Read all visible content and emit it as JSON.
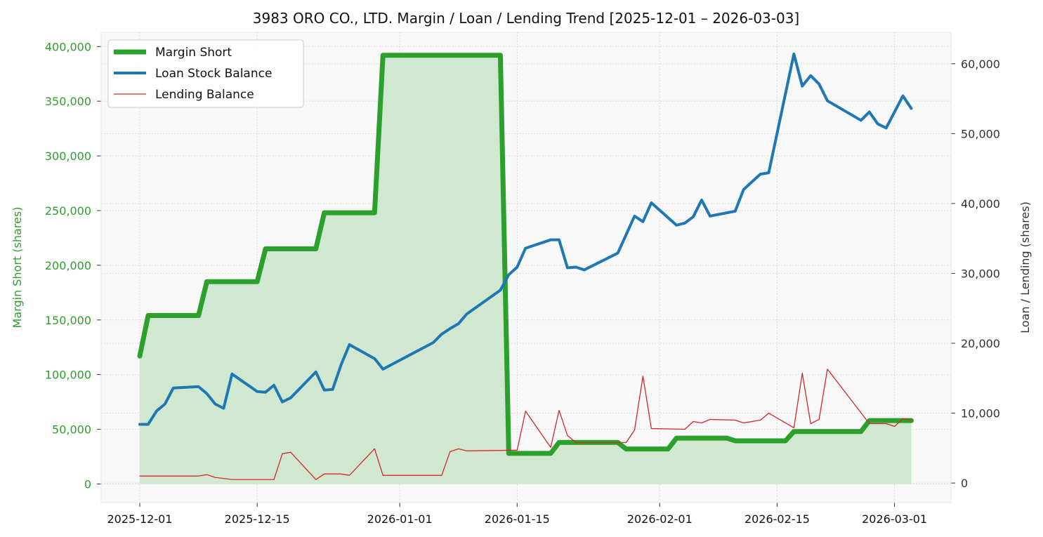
{
  "chart_data": {
    "type": "line",
    "title": "3983 ORO CO., LTD. Margin / Loan / Lending Trend [2025-12-01 – 2026-03-03]",
    "xlabel": "",
    "ylabel_left": "Margin Short (shares)",
    "ylabel_right": "Loan / Lending (shares)",
    "x_ticks": [
      "2025-12-01",
      "2025-12-15",
      "2026-01-01",
      "2026-01-15",
      "2026-02-01",
      "2026-02-15",
      "2026-03-01"
    ],
    "y_left_ticks": [
      "0",
      "50,000",
      "100,000",
      "150,000",
      "200,000",
      "250,000",
      "300,000",
      "350,000",
      "400,000"
    ],
    "y_right_ticks": [
      "0",
      "10,000",
      "20,000",
      "30,000",
      "40,000",
      "50,000",
      "60,000"
    ],
    "y_left_range": [
      -17000,
      413000
    ],
    "y_right_range": [
      -2800,
      64500
    ],
    "grid": true,
    "legend_position": "top-left",
    "colors": {
      "margin": "#2ca02c",
      "margin_fill": "#d0e8cf",
      "loan": "#1f77b4",
      "lending": "#d62728",
      "plot_bg": "#f8f8f8",
      "left_axis_text": "#2ca02c",
      "right_axis_text": "#333333"
    },
    "series": [
      {
        "name": "Margin Short",
        "axis": "left",
        "points": [
          [
            "2025-12-01",
            117000
          ],
          [
            "2025-12-02",
            154000
          ],
          [
            "2025-12-08",
            154000
          ],
          [
            "2025-12-09",
            185000
          ],
          [
            "2025-12-15",
            185000
          ],
          [
            "2025-12-16",
            215000
          ],
          [
            "2025-12-22",
            215000
          ],
          [
            "2025-12-23",
            248000
          ],
          [
            "2025-12-29",
            248000
          ],
          [
            "2025-12-30",
            392000
          ],
          [
            "2026-01-13",
            392000
          ],
          [
            "2026-01-14",
            28000
          ],
          [
            "2026-01-19",
            28000
          ],
          [
            "2026-01-20",
            38000
          ],
          [
            "2026-01-27",
            38000
          ],
          [
            "2026-01-28",
            32000
          ],
          [
            "2026-02-02",
            32000
          ],
          [
            "2026-02-03",
            42000
          ],
          [
            "2026-02-09",
            42000
          ],
          [
            "2026-02-10",
            39500
          ],
          [
            "2026-02-16",
            39500
          ],
          [
            "2026-02-17",
            48000
          ],
          [
            "2026-02-25",
            48000
          ],
          [
            "2026-02-26",
            58000
          ],
          [
            "2026-03-03",
            58000
          ]
        ]
      },
      {
        "name": "Loan Stock Balance",
        "axis": "right",
        "points": [
          [
            "2025-12-01",
            8400
          ],
          [
            "2025-12-02",
            8400
          ],
          [
            "2025-12-03",
            10300
          ],
          [
            "2025-12-04",
            11300
          ],
          [
            "2025-12-05",
            13600
          ],
          [
            "2025-12-08",
            13800
          ],
          [
            "2025-12-09",
            12800
          ],
          [
            "2025-12-10",
            11300
          ],
          [
            "2025-12-11",
            10700
          ],
          [
            "2025-12-12",
            15600
          ],
          [
            "2025-12-15",
            13100
          ],
          [
            "2025-12-16",
            13000
          ],
          [
            "2025-12-17",
            14000
          ],
          [
            "2025-12-18",
            11600
          ],
          [
            "2025-12-19",
            12200
          ],
          [
            "2025-12-22",
            15900
          ],
          [
            "2025-12-23",
            13300
          ],
          [
            "2025-12-24",
            13400
          ],
          [
            "2025-12-25",
            16900
          ],
          [
            "2025-12-26",
            19800
          ],
          [
            "2025-12-29",
            17800
          ],
          [
            "2025-12-30",
            16300
          ],
          [
            "2026-01-05",
            20100
          ],
          [
            "2026-01-06",
            21300
          ],
          [
            "2026-01-07",
            22100
          ],
          [
            "2026-01-08",
            22800
          ],
          [
            "2026-01-09",
            24200
          ],
          [
            "2026-01-13",
            27600
          ],
          [
            "2026-01-14",
            29800
          ],
          [
            "2026-01-15",
            30900
          ],
          [
            "2026-01-16",
            33600
          ],
          [
            "2026-01-19",
            34800
          ],
          [
            "2026-01-20",
            34800
          ],
          [
            "2026-01-21",
            30800
          ],
          [
            "2026-01-22",
            30900
          ],
          [
            "2026-01-23",
            30500
          ],
          [
            "2026-01-27",
            32900
          ],
          [
            "2026-01-29",
            38200
          ],
          [
            "2026-01-30",
            37400
          ],
          [
            "2026-01-31",
            40100
          ],
          [
            "2026-02-03",
            36900
          ],
          [
            "2026-02-04",
            37200
          ],
          [
            "2026-02-05",
            38100
          ],
          [
            "2026-02-06",
            40500
          ],
          [
            "2026-02-07",
            38200
          ],
          [
            "2026-02-10",
            38900
          ],
          [
            "2026-02-11",
            42000
          ],
          [
            "2026-02-13",
            44200
          ],
          [
            "2026-02-14",
            44400
          ],
          [
            "2026-02-17",
            61400
          ],
          [
            "2026-02-18",
            56800
          ],
          [
            "2026-02-19",
            58300
          ],
          [
            "2026-02-20",
            57100
          ],
          [
            "2026-02-21",
            54700
          ],
          [
            "2026-02-25",
            51900
          ],
          [
            "2026-02-26",
            53100
          ],
          [
            "2026-02-27",
            51400
          ],
          [
            "2026-02-28",
            50800
          ],
          [
            "2026-03-02",
            55400
          ],
          [
            "2026-03-03",
            53600
          ]
        ]
      },
      {
        "name": "Lending Balance",
        "axis": "right",
        "points": [
          [
            "2025-12-01",
            1000
          ],
          [
            "2025-12-08",
            1000
          ],
          [
            "2025-12-09",
            1200
          ],
          [
            "2025-12-10",
            800
          ],
          [
            "2025-12-12",
            500
          ],
          [
            "2025-12-17",
            500
          ],
          [
            "2025-12-18",
            4200
          ],
          [
            "2025-12-19",
            4400
          ],
          [
            "2025-12-22",
            500
          ],
          [
            "2025-12-23",
            1300
          ],
          [
            "2025-12-25",
            1300
          ],
          [
            "2025-12-26",
            1100
          ],
          [
            "2025-12-29",
            4900
          ],
          [
            "2025-12-30",
            1100
          ],
          [
            "2026-01-06",
            1100
          ],
          [
            "2026-01-07",
            4500
          ],
          [
            "2026-01-08",
            4900
          ],
          [
            "2026-01-09",
            4600
          ],
          [
            "2026-01-15",
            4700
          ],
          [
            "2026-01-16",
            10300
          ],
          [
            "2026-01-19",
            5100
          ],
          [
            "2026-01-20",
            10400
          ],
          [
            "2026-01-21",
            6800
          ],
          [
            "2026-01-22",
            5800
          ],
          [
            "2026-01-28",
            5800
          ],
          [
            "2026-01-29",
            7600
          ],
          [
            "2026-01-30",
            15300
          ],
          [
            "2026-01-31",
            7800
          ],
          [
            "2026-02-04",
            7700
          ],
          [
            "2026-02-05",
            8800
          ],
          [
            "2026-02-06",
            8600
          ],
          [
            "2026-02-07",
            9100
          ],
          [
            "2026-02-10",
            9000
          ],
          [
            "2026-02-11",
            8600
          ],
          [
            "2026-02-13",
            9000
          ],
          [
            "2026-02-14",
            10000
          ],
          [
            "2026-02-17",
            7900
          ],
          [
            "2026-02-18",
            15700
          ],
          [
            "2026-02-19",
            8500
          ],
          [
            "2026-02-20",
            9100
          ],
          [
            "2026-02-21",
            16300
          ],
          [
            "2026-02-26",
            8500
          ],
          [
            "2026-02-28",
            8500
          ],
          [
            "2026-03-01",
            8100
          ],
          [
            "2026-03-02",
            9200
          ],
          [
            "2026-03-03",
            9000
          ]
        ]
      }
    ]
  }
}
